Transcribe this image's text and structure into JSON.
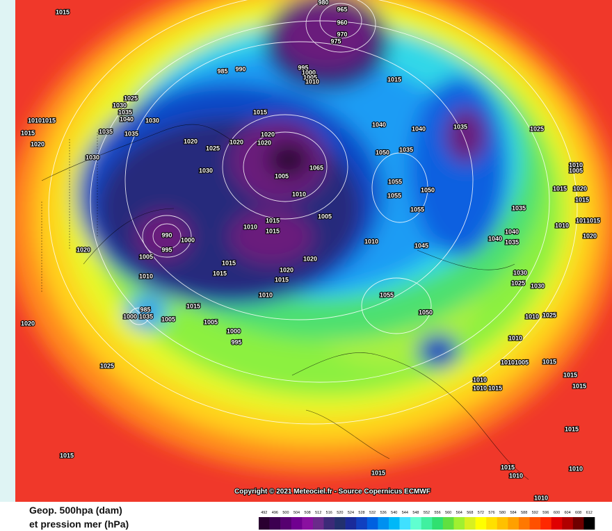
{
  "map": {
    "isobar_labels": [
      1015,
      980,
      965,
      960,
      970,
      975,
      985,
      990,
      995,
      1000,
      1005,
      1010,
      1015,
      1025,
      1030,
      1035,
      1040,
      1030,
      1010,
      1015,
      1015,
      1020,
      1035,
      1035,
      1030,
      1015,
      1040,
      1040,
      1035,
      1025,
      1020,
      1025,
      1020,
      1020,
      1020,
      1050,
      1035,
      1030,
      1005,
      1065,
      1010,
      1055,
      1050,
      1055,
      1055,
      1035,
      1010,
      1005,
      1015,
      1020,
      1015,
      1010,
      1010,
      1015,
      1020,
      990,
      1000,
      995,
      1005,
      1020,
      1015,
      1010,
      1015,
      1005,
      1010,
      1045,
      1040,
      1040,
      1035,
      1010,
      1015,
      1015,
      1020,
      1020,
      1015,
      1010,
      1030,
      1025,
      1030,
      1055,
      1050,
      985,
      1000,
      1035,
      1005,
      1015,
      1005,
      1000,
      995,
      1020,
      1025,
      1010,
      1010,
      1025,
      1015,
      1010,
      1005,
      1015,
      1015,
      1010,
      1010,
      1015,
      1015,
      1015,
      1015,
      1015,
      1010,
      1010,
      1010
    ],
    "copyright": "Copyright © 2021 Meteociel.fr - Source Copernicus ECMWF"
  },
  "legend": {
    "title_line1": "Geop. 500hpa (dam)",
    "title_line2": "et pression mer (hPa)",
    "levels": [
      492,
      496,
      500,
      504,
      508,
      512,
      516,
      520,
      524,
      528,
      532,
      536,
      540,
      544,
      548,
      552,
      556,
      560,
      564,
      568,
      572,
      576,
      580,
      584,
      588,
      592,
      596,
      600,
      604,
      608,
      612
    ]
  }
}
